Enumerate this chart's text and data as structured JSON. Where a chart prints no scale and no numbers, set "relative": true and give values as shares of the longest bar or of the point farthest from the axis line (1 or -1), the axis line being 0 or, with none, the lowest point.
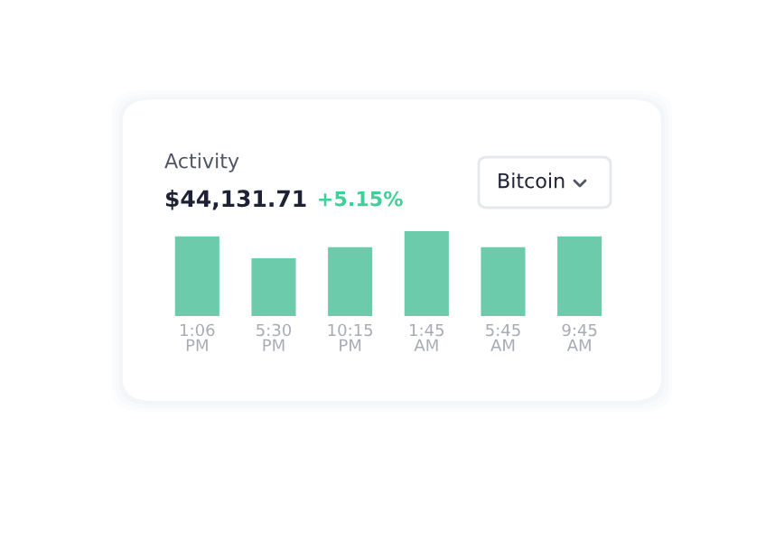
{
  "chart_data": {
    "type": "bar",
    "title": "Activity",
    "subtitle": "$44,131.71",
    "annotations": [
      "+5.15%",
      "Bitcoin"
    ],
    "categories": [
      "1:06\nPM",
      "5:30\nPM",
      "10:15\nPM",
      "1:45\nAM",
      "5:45\nAM",
      "9:45\nAM"
    ],
    "values": [
      0.94,
      0.68,
      0.81,
      1,
      0.81,
      0.94
    ],
    "color": "#6ccbab",
    "relative": true,
    "grid": false,
    "legend": false
  }
}
